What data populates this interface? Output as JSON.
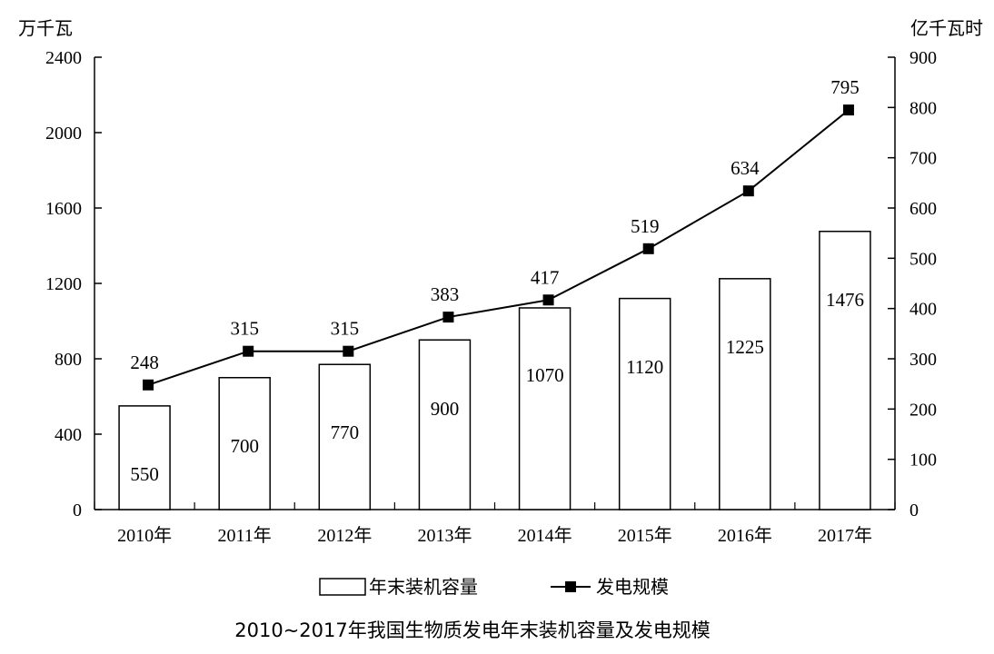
{
  "chart_data": {
    "type": "bar",
    "title": "2010~2017年我国生物质发电年末装机容量及发电规模",
    "categories": [
      "2010年",
      "2011年",
      "2012年",
      "2013年",
      "2014年",
      "2015年",
      "2016年",
      "2017年"
    ],
    "y_left_label": "万千瓦",
    "y_right_label": "亿千瓦时",
    "y_left_range": [
      0,
      2400
    ],
    "y_left_ticks": [
      0,
      400,
      800,
      1200,
      1600,
      2000,
      2400
    ],
    "y_right_range": [
      0,
      900
    ],
    "y_right_ticks": [
      0,
      100,
      200,
      300,
      400,
      500,
      600,
      700,
      800,
      900
    ],
    "grid": false,
    "legend_position": "bottom",
    "series": [
      {
        "name": "年末装机容量",
        "type": "bar",
        "axis": "left",
        "values": [
          550,
          700,
          770,
          900,
          1070,
          1120,
          1225,
          1476
        ],
        "labels": [
          "550",
          "700",
          "770",
          "900",
          "1070",
          "1120",
          "1225",
          "1476"
        ]
      },
      {
        "name": "发电规模",
        "type": "line",
        "axis": "right",
        "marker": "square",
        "values": [
          248,
          315,
          315,
          383,
          417,
          519,
          634,
          795
        ],
        "labels": [
          "248",
          "315",
          "315",
          "383",
          "417",
          "519",
          "634",
          "795"
        ]
      }
    ],
    "colors": {
      "bar_fill": "#ffffff",
      "bar_stroke": "#000000",
      "line": "#000000",
      "marker": "#000000"
    }
  }
}
